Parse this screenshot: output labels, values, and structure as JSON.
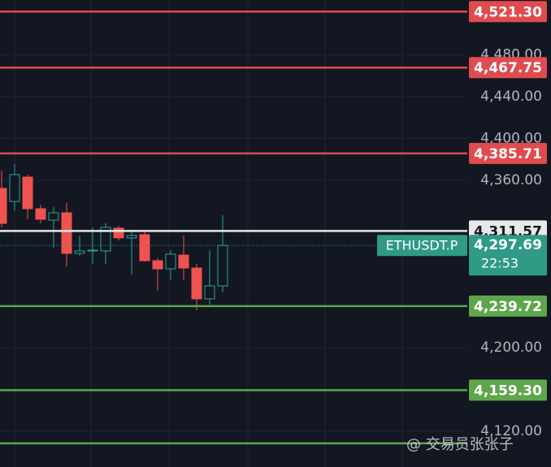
{
  "chart_data": {
    "type": "candlestick",
    "symbol": "ETHUSDT.P",
    "categories": [
      null,
      null,
      null,
      null,
      null,
      null,
      null,
      null,
      null,
      null,
      null,
      null,
      null,
      null,
      null,
      null,
      null,
      null
    ],
    "open": [
      4352.2,
      4339.8,
      4363.1,
      4332.8,
      4321.9,
      4328.9,
      4290.1,
      4292.4,
      4292.4,
      4314.2,
      4304.9,
      4308.0,
      4283.1,
      4275.3,
      4288.5,
      4276.1,
      4246.6,
      4259.0
    ],
    "high": [
      4369.3,
      4375.5,
      4365.4,
      4336.7,
      4334.4,
      4338.3,
      4307.2,
      4315.0,
      4318.8,
      4316.5,
      4312.6,
      4310.3,
      4285.4,
      4293.2,
      4307.2,
      4280.0,
      4293.2,
      4326.6
    ],
    "low": [
      4315.0,
      4330.5,
      4322.7,
      4318.8,
      4295.5,
      4277.7,
      4287.8,
      4280.0,
      4280.0,
      4302.5,
      4269.9,
      4282.3,
      4254.4,
      4264.5,
      4264.5,
      4235.7,
      4241.2,
      4252.8
    ],
    "close": [
      4318.8,
      4365.4,
      4332.8,
      4322.7,
      4328.9,
      4290.1,
      4292.4,
      4293.2,
      4315.0,
      4304.9,
      4307.2,
      4283.1,
      4275.3,
      4289.3,
      4276.1,
      4246.6,
      4259.0,
      4297.69
    ],
    "up_color": "#26a69a",
    "down_color": "#ef5350",
    "ylim": [
      4085.8,
      4532.4
    ],
    "yticks": [
      {
        "value": 4480,
        "label": "4,480.00"
      },
      {
        "value": 4440,
        "label": "4,440.00"
      },
      {
        "value": 4400,
        "label": "4,400.00"
      },
      {
        "value": 4360,
        "label": "4,360.00"
      },
      {
        "value": 4200,
        "label": "4,200.00"
      },
      {
        "value": 4120,
        "label": "4,120.00"
      }
    ],
    "grid": true,
    "levels": [
      {
        "value": 4521.3,
        "label": "4,521.30",
        "color": "#e04b4f"
      },
      {
        "value": 4467.75,
        "label": "4,467.75",
        "color": "#e04b4f"
      },
      {
        "value": 4385.71,
        "label": "4,385.71",
        "color": "#e04b4f"
      },
      {
        "value": 4311.57,
        "label": "4,311.57",
        "color": "#e8e8e8"
      },
      {
        "value": 4239.72,
        "label": "4,239.72",
        "color": "#5ea64c"
      },
      {
        "value": 4159.3,
        "label": "4,159.30",
        "color": "#5ea64c"
      },
      {
        "value": 4108.4,
        "color": "#5ea64c"
      }
    ],
    "current": {
      "value": 4297.69,
      "label": "4,297.69",
      "countdown": "22:53",
      "color": "#2f9a86"
    },
    "watermark": "@ 交易员张张子"
  }
}
